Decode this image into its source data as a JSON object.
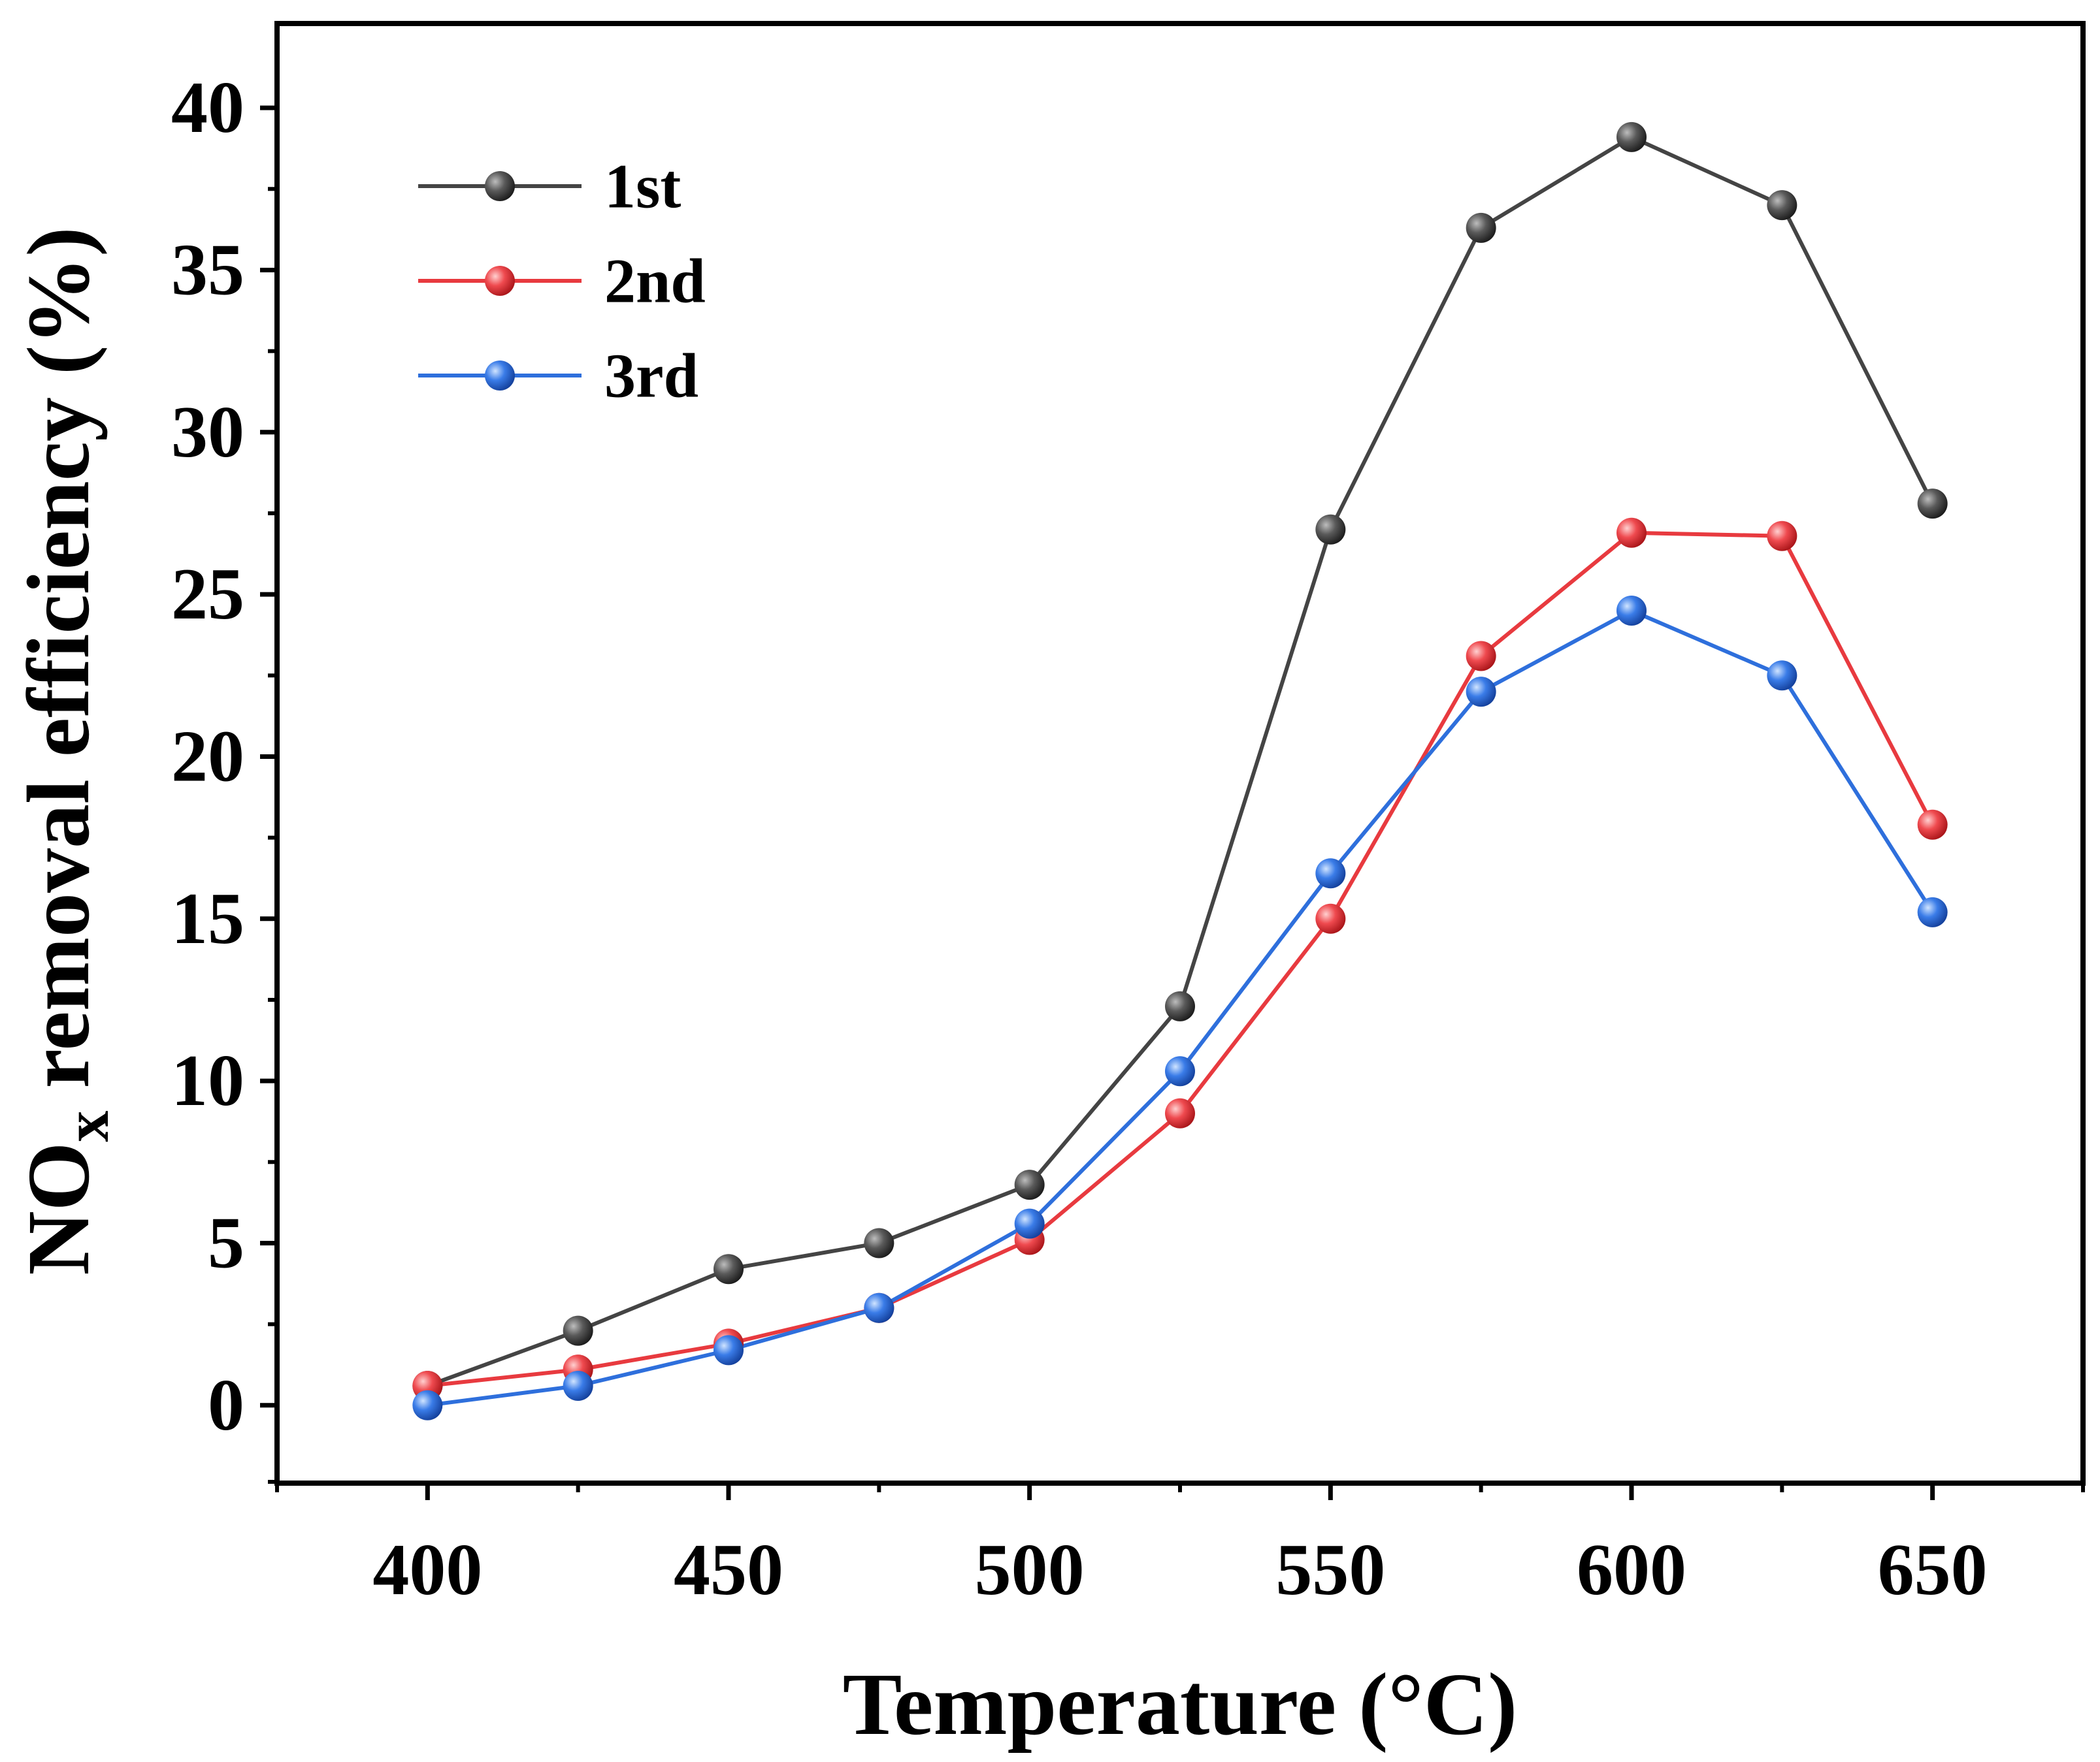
{
  "chart_data": {
    "type": "line",
    "title": "",
    "xlabel": "Temperature (°C)",
    "ylabel_main": "NO",
    "ylabel_sub": "x",
    "ylabel_rest": " removal efficiency (%)",
    "x": [
      400,
      425,
      450,
      475,
      500,
      525,
      550,
      575,
      600,
      625,
      650
    ],
    "x_ticks": [
      400,
      450,
      500,
      550,
      600,
      650
    ],
    "x_tick_labels": [
      "400",
      "450",
      "500",
      "550",
      "600",
      "650"
    ],
    "y_ticks": [
      0,
      5,
      10,
      15,
      20,
      25,
      30,
      35,
      40
    ],
    "y_tick_labels": [
      "0",
      "5",
      "10",
      "15",
      "20",
      "25",
      "30",
      "35",
      "40"
    ],
    "xlim": [
      375,
      675
    ],
    "ylim": [
      -2.4,
      42.6
    ],
    "grid": false,
    "legend_position": "top-left",
    "series": [
      {
        "name": "1st",
        "color": "#444444",
        "values": [
          0.6,
          2.3,
          4.2,
          5.0,
          6.8,
          12.3,
          27.0,
          36.3,
          39.1,
          37.0,
          27.8
        ]
      },
      {
        "name": "2nd",
        "color": "#e83a3f",
        "values": [
          0.6,
          1.1,
          1.9,
          3.0,
          5.1,
          9.0,
          15.0,
          23.1,
          26.9,
          26.8,
          17.9
        ]
      },
      {
        "name": "3rd",
        "color": "#2e6fdc",
        "values": [
          0.0,
          0.6,
          1.7,
          3.0,
          5.6,
          10.3,
          16.4,
          22.0,
          24.5,
          22.5,
          15.2
        ]
      }
    ]
  }
}
